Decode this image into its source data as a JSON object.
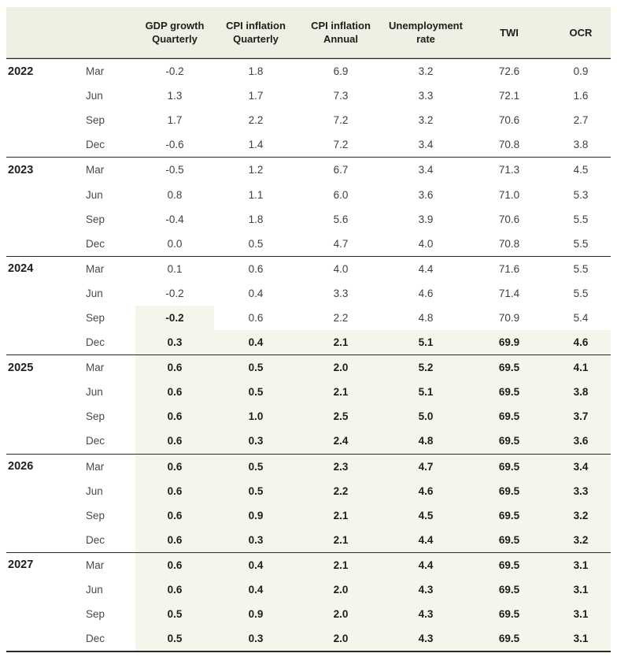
{
  "colors": {
    "header_bg": "#edf0e2",
    "forecast_bg": "#f4f5eb",
    "rule_dark": "#2b2a26",
    "rule_light": "#b3b3aa",
    "text_dark": "#1e1e1c",
    "text_regular": "#3f3f3c"
  },
  "chart_data": {
    "type": "table",
    "column_headers": [
      {
        "line1": "GDP growth",
        "line2": "Quarterly"
      },
      {
        "line1": "CPI inflation",
        "line2": "Quarterly"
      },
      {
        "line1": "CPI inflation",
        "line2": "Annual"
      },
      {
        "line1": "Unemployment",
        "line2": "rate"
      },
      {
        "line1": "TWI",
        "line2": ""
      },
      {
        "line1": "OCR",
        "line2": ""
      }
    ],
    "row_group_labels": [
      "2022",
      "2023",
      "2024",
      "2025",
      "2026",
      "2027"
    ],
    "rows": [
      {
        "year": "2022",
        "month": "Mar",
        "values": [
          "-0.2",
          "1.8",
          "6.9",
          "3.2",
          "72.6",
          "0.9"
        ],
        "forecast": "none"
      },
      {
        "year": "",
        "month": "Jun",
        "values": [
          "1.3",
          "1.7",
          "7.3",
          "3.3",
          "72.1",
          "1.6"
        ],
        "forecast": "none"
      },
      {
        "year": "",
        "month": "Sep",
        "values": [
          "1.7",
          "2.2",
          "7.2",
          "3.2",
          "70.6",
          "2.7"
        ],
        "forecast": "none"
      },
      {
        "year": "",
        "month": "Dec",
        "values": [
          "-0.6",
          "1.4",
          "7.2",
          "3.4",
          "70.8",
          "3.8"
        ],
        "forecast": "none"
      },
      {
        "year": "2023",
        "month": "Mar",
        "values": [
          "-0.5",
          "1.2",
          "6.7",
          "3.4",
          "71.3",
          "4.5"
        ],
        "forecast": "none"
      },
      {
        "year": "",
        "month": "Jun",
        "values": [
          "0.8",
          "1.1",
          "6.0",
          "3.6",
          "71.0",
          "5.3"
        ],
        "forecast": "none"
      },
      {
        "year": "",
        "month": "Sep",
        "values": [
          "-0.4",
          "1.8",
          "5.6",
          "3.9",
          "70.6",
          "5.5"
        ],
        "forecast": "none"
      },
      {
        "year": "",
        "month": "Dec",
        "values": [
          "0.0",
          "0.5",
          "4.7",
          "4.0",
          "70.8",
          "5.5"
        ],
        "forecast": "none"
      },
      {
        "year": "2024",
        "month": "Mar",
        "values": [
          "0.1",
          "0.6",
          "4.0",
          "4.4",
          "71.6",
          "5.5"
        ],
        "forecast": "none"
      },
      {
        "year": "",
        "month": "Jun",
        "values": [
          "-0.2",
          "0.4",
          "3.3",
          "4.6",
          "71.4",
          "5.5"
        ],
        "forecast": "none"
      },
      {
        "year": "",
        "month": "Sep",
        "values": [
          "-0.2",
          "0.6",
          "2.2",
          "4.8",
          "70.9",
          "5.4"
        ],
        "forecast": "gdp_only"
      },
      {
        "year": "",
        "month": "Dec",
        "values": [
          "0.3",
          "0.4",
          "2.1",
          "5.1",
          "69.9",
          "4.6"
        ],
        "forecast": "all"
      },
      {
        "year": "2025",
        "month": "Mar",
        "values": [
          "0.6",
          "0.5",
          "2.0",
          "5.2",
          "69.5",
          "4.1"
        ],
        "forecast": "all"
      },
      {
        "year": "",
        "month": "Jun",
        "values": [
          "0.6",
          "0.5",
          "2.1",
          "5.1",
          "69.5",
          "3.8"
        ],
        "forecast": "all"
      },
      {
        "year": "",
        "month": "Sep",
        "values": [
          "0.6",
          "1.0",
          "2.5",
          "5.0",
          "69.5",
          "3.7"
        ],
        "forecast": "all"
      },
      {
        "year": "",
        "month": "Dec",
        "values": [
          "0.6",
          "0.3",
          "2.4",
          "4.8",
          "69.5",
          "3.6"
        ],
        "forecast": "all"
      },
      {
        "year": "2026",
        "month": "Mar",
        "values": [
          "0.6",
          "0.5",
          "2.3",
          "4.7",
          "69.5",
          "3.4"
        ],
        "forecast": "all"
      },
      {
        "year": "",
        "month": "Jun",
        "values": [
          "0.6",
          "0.5",
          "2.2",
          "4.6",
          "69.5",
          "3.3"
        ],
        "forecast": "all"
      },
      {
        "year": "",
        "month": "Sep",
        "values": [
          "0.6",
          "0.9",
          "2.1",
          "4.5",
          "69.5",
          "3.2"
        ],
        "forecast": "all"
      },
      {
        "year": "",
        "month": "Dec",
        "values": [
          "0.6",
          "0.3",
          "2.1",
          "4.4",
          "69.5",
          "3.2"
        ],
        "forecast": "all"
      },
      {
        "year": "2027",
        "month": "Mar",
        "values": [
          "0.6",
          "0.4",
          "2.1",
          "4.4",
          "69.5",
          "3.1"
        ],
        "forecast": "all"
      },
      {
        "year": "",
        "month": "Jun",
        "values": [
          "0.6",
          "0.4",
          "2.0",
          "4.3",
          "69.5",
          "3.1"
        ],
        "forecast": "all"
      },
      {
        "year": "",
        "month": "Sep",
        "values": [
          "0.5",
          "0.9",
          "2.0",
          "4.3",
          "69.5",
          "3.1"
        ],
        "forecast": "all"
      },
      {
        "year": "",
        "month": "Dec",
        "values": [
          "0.5",
          "0.3",
          "2.0",
          "4.3",
          "69.5",
          "3.1"
        ],
        "forecast": "all"
      }
    ]
  }
}
